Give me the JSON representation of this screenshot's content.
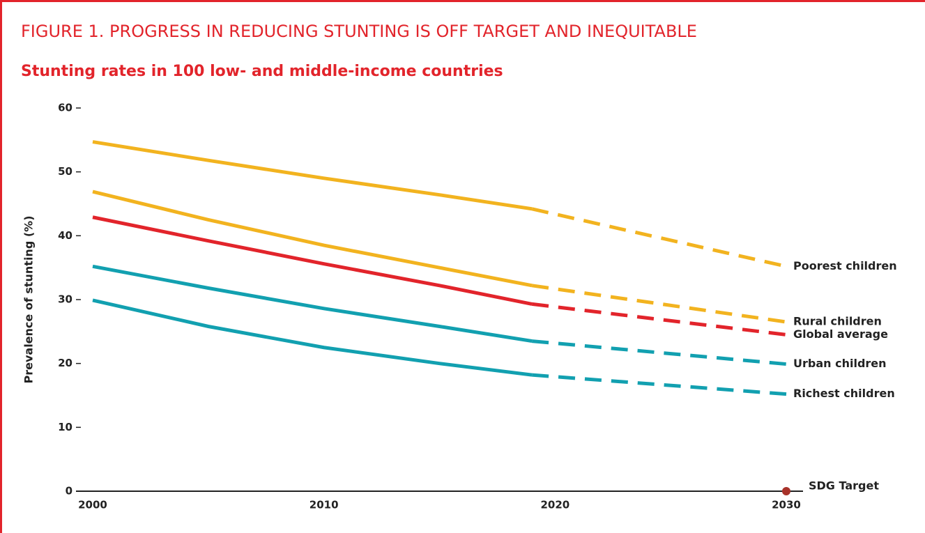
{
  "chart_data": {
    "type": "line",
    "title": "FIGURE 1. PROGRESS IN REDUCING STUNTING IS OFF TARGET AND INEQUITABLE",
    "subtitle": "Stunting rates in 100 low- and middle-income countries",
    "y_label": "Prevalence of stunting (%)",
    "x": [
      2000,
      2005,
      2010,
      2015,
      2019,
      2030
    ],
    "series": [
      {
        "name": "Poorest children",
        "color": "#f2b31f",
        "values": [
          54.7,
          51.8,
          49.0,
          46.4,
          44.2,
          null
        ],
        "projected": [
          null,
          null,
          null,
          null,
          44.2,
          35.2
        ]
      },
      {
        "name": "Rural children",
        "color": "#f2b31f",
        "values": [
          46.9,
          42.5,
          38.5,
          35.0,
          32.2,
          null
        ],
        "projected": [
          null,
          null,
          null,
          null,
          32.2,
          26.5
        ]
      },
      {
        "name": "Global average",
        "color": "#e2242b",
        "values": [
          42.9,
          39.2,
          35.6,
          32.2,
          29.3,
          null
        ],
        "projected": [
          null,
          null,
          null,
          null,
          29.3,
          24.5
        ]
      },
      {
        "name": "Urban children",
        "color": "#12a0b0",
        "values": [
          35.2,
          31.8,
          28.6,
          25.8,
          23.5,
          null
        ],
        "projected": [
          null,
          null,
          null,
          null,
          23.5,
          19.9
        ]
      },
      {
        "name": "Richest children",
        "color": "#12a0b0",
        "values": [
          29.9,
          25.8,
          22.5,
          20.0,
          18.2,
          null
        ],
        "projected": [
          null,
          null,
          null,
          null,
          18.2,
          15.2
        ]
      }
    ],
    "target": {
      "label": "SDG Target",
      "x": 2030,
      "value": 0,
      "color": "#a8322a"
    },
    "xlim": [
      2000,
      2030
    ],
    "xticks": [
      2000,
      2010,
      2020,
      2030
    ],
    "ylim": [
      0,
      60
    ],
    "yticks": [
      0,
      10,
      20,
      30,
      40,
      50,
      60
    ]
  }
}
